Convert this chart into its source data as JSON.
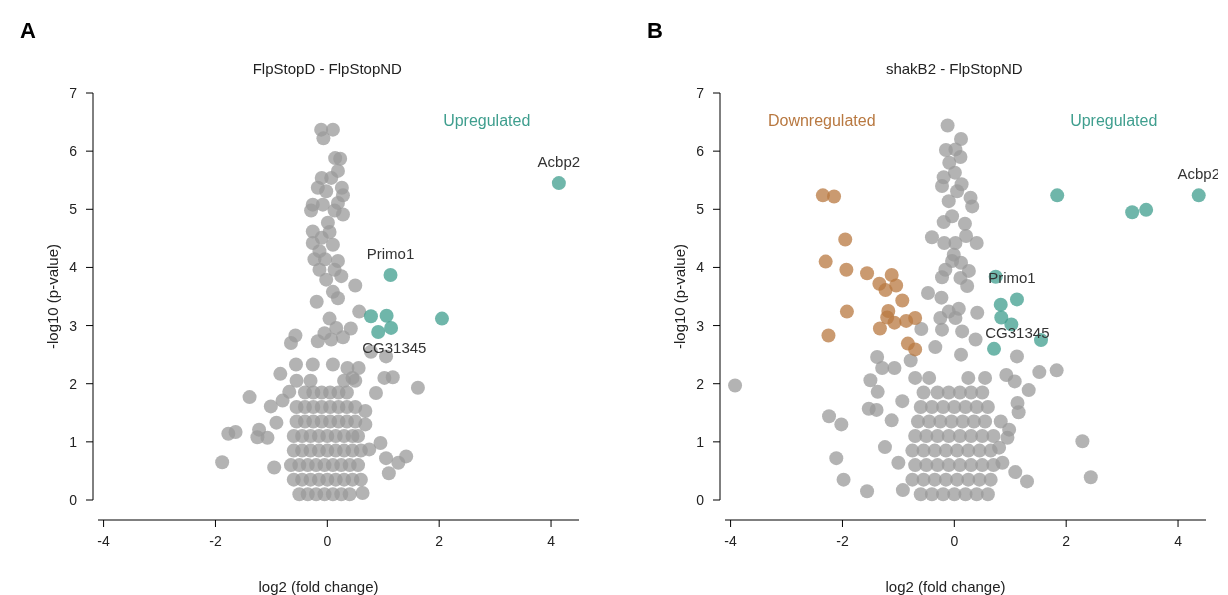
{
  "chart_data": [
    {
      "type": "scatter",
      "title": "FlpStopD - FlpStopND",
      "xlabel": "log2 (fold change)",
      "ylabel": "-log10 (p-value)",
      "xlim": [
        -4.1,
        4.5
      ],
      "ylim": [
        0,
        7
      ],
      "xticks": [
        -4,
        -2,
        0,
        2,
        4
      ],
      "yticks": [
        0,
        1,
        2,
        3,
        4,
        5,
        6,
        7
      ],
      "marker": "circle",
      "annotations": [
        "A",
        {
          "text": "Acbp2",
          "x": 4.14,
          "y": 5.45
        },
        {
          "text": "Primo1",
          "x": 1.13,
          "y": 3.87
        },
        {
          "text": "CG31345",
          "x": 0.91,
          "y": 2.89
        }
      ],
      "series": [
        {
          "color": "#999999",
          "x": [
            -0.11,
            0.1,
            -0.07,
            0.14,
            0.23,
            0.19,
            -0.1,
            0.07,
            -0.17,
            0.26,
            -0.02,
            0.28,
            -0.26,
            -0.08,
            0.19,
            -0.29,
            0.13,
            0.28,
            0.01,
            -0.26,
            0.04,
            -0.1,
            -0.26,
            0.1,
            -0.14,
            -0.23,
            -0.04,
            0.19,
            -0.14,
            0.13,
            0.25,
            -0.02,
            0.5,
            0.1,
            0.19,
            -0.19,
            0.57,
            0.04,
            0.42,
            -0.05,
            0.16,
            -0.57,
            -0.65,
            -0.17,
            0.07,
            0.28,
            0.78,
            1.05,
            -0.84,
            -0.56,
            -0.26,
            0.1,
            0.36,
            0.56,
            1.02,
            1.17,
            1.62,
            0.87,
            0.45,
            -1.39,
            -1.01,
            -0.8,
            -0.68,
            -0.91,
            0.68,
            0.68,
            -1.77,
            -1.64,
            -1.25,
            -1.07,
            -1.22,
            -1.88,
            -0.95,
            0.95,
            1.05,
            1.41,
            1.27,
            1.1,
            0.75,
            0.63,
            -0.5,
            -0.35,
            -0.2,
            -0.05,
            0.1,
            0.25,
            0.4,
            -0.6,
            -0.45,
            -0.3,
            -0.15,
            0,
            0.15,
            0.3,
            0.45,
            0.6,
            -0.65,
            -0.5,
            -0.35,
            -0.2,
            -0.05,
            0.1,
            0.25,
            0.4,
            0.55,
            -0.6,
            -0.45,
            -0.3,
            -0.15,
            0,
            0.15,
            0.3,
            0.45,
            0.6,
            -0.6,
            -0.45,
            -0.3,
            -0.15,
            0,
            0.15,
            0.3,
            0.45,
            0.55,
            -0.55,
            -0.4,
            -0.25,
            -0.1,
            0.05,
            0.2,
            0.35,
            0.5,
            -0.55,
            -0.4,
            -0.25,
            -0.1,
            0.05,
            0.2,
            0.35,
            0.5,
            -0.4,
            -0.25,
            -0.1,
            0.05,
            0.2,
            0.35,
            -0.55,
            -0.3,
            0.3,
            0.5
          ],
          "values": [
            6.37,
            6.37,
            6.22,
            5.88,
            5.87,
            5.66,
            5.54,
            5.54,
            5.37,
            5.37,
            5.31,
            5.24,
            5.08,
            5.08,
            5.11,
            4.98,
            4.98,
            4.91,
            4.77,
            4.62,
            4.61,
            4.51,
            4.42,
            4.39,
            4.28,
            4.14,
            4.14,
            4.11,
            3.96,
            3.96,
            3.85,
            3.79,
            3.69,
            3.58,
            3.47,
            3.41,
            3.24,
            3.12,
            2.95,
            2.87,
            2.96,
            2.83,
            2.7,
            2.73,
            2.76,
            2.8,
            2.55,
            2.47,
            2.17,
            2.33,
            2.33,
            2.33,
            2.27,
            2.27,
            2.1,
            2.11,
            1.93,
            1.84,
            2.1,
            1.77,
            1.61,
            1.71,
            1.86,
            1.33,
            1.53,
            1.3,
            1.14,
            1.17,
            1.08,
            1.07,
            1.21,
            0.65,
            0.56,
            0.98,
            0.72,
            0.75,
            0.64,
            0.46,
            0.87,
            0.12,
            0.1,
            0.1,
            0.1,
            0.1,
            0.1,
            0.1,
            0.1,
            0.35,
            0.35,
            0.35,
            0.35,
            0.35,
            0.35,
            0.35,
            0.35,
            0.35,
            0.6,
            0.6,
            0.6,
            0.6,
            0.6,
            0.6,
            0.6,
            0.6,
            0.6,
            0.85,
            0.85,
            0.85,
            0.85,
            0.85,
            0.85,
            0.85,
            0.85,
            0.85,
            1.1,
            1.1,
            1.1,
            1.1,
            1.1,
            1.1,
            1.1,
            1.1,
            1.1,
            1.35,
            1.35,
            1.35,
            1.35,
            1.35,
            1.35,
            1.35,
            1.35,
            1.6,
            1.6,
            1.6,
            1.6,
            1.6,
            1.6,
            1.6,
            1.6,
            1.85,
            1.85,
            1.85,
            1.85,
            1.85,
            1.85,
            2.05,
            2.05,
            2.05,
            2.05
          ]
        },
        {
          "name": "Upregulated",
          "color": "#3f9e8e",
          "x": [
            4.14,
            1.13,
            0.78,
            1.06,
            2.05,
            0.91,
            1.14
          ],
          "values": [
            5.45,
            3.87,
            3.16,
            3.17,
            3.12,
            2.89,
            2.96
          ]
        }
      ]
    },
    {
      "type": "scatter",
      "title": "shakB2 - FlpStopND",
      "xlabel": "log2 (fold change)",
      "ylabel": "-log10 (p-value)",
      "xlim": [
        -4.1,
        4.5
      ],
      "ylim": [
        0,
        7
      ],
      "xticks": [
        -4,
        -2,
        0,
        2,
        4
      ],
      "yticks": [
        0,
        1,
        2,
        3,
        4,
        5,
        6,
        7
      ],
      "marker": "circle",
      "annotations": [
        "B",
        {
          "text": "Acbp2",
          "x": 4.37,
          "y": 5.24
        },
        {
          "text": "Primo1",
          "x": 1.03,
          "y": 3.45
        },
        {
          "text": "CG31345",
          "x": 0.84,
          "y": 3.14
        }
      ],
      "series": [
        {
          "color": "#999999",
          "x": [
            -0.12,
            0.12,
            -0.15,
            0.02,
            0.11,
            -0.09,
            0.01,
            -0.19,
            -0.22,
            0.13,
            0.05,
            0.29,
            -0.1,
            0.32,
            -0.04,
            -0.19,
            0.19,
            -0.4,
            -0.18,
            0.02,
            0.4,
            0.21,
            -0.01,
            -0.04,
            0.12,
            -0.16,
            0.26,
            -0.22,
            0.11,
            0.23,
            -0.47,
            -0.23,
            0.08,
            -0.1,
            0.41,
            -0.25,
            0.02,
            -0.59,
            -0.22,
            0.14,
            -0.34,
            0.12,
            1.12,
            0.38,
            -1.38,
            -1.29,
            -1.07,
            -0.78,
            0.93,
            1.52,
            1.83,
            -1.5,
            -3.92,
            1.08,
            1.33,
            -1.37,
            -1.53,
            -1.39,
            -0.93,
            1.13,
            1.15,
            -2.24,
            -2.02,
            -1.12,
            0.83,
            0.98,
            2.29,
            -1.24,
            -2.11,
            -1.0,
            -1.98,
            -1.56,
            -0.92,
            2.44,
            1.3,
            1.09,
            0.86,
            0.95,
            0.8,
            -0.6,
            -0.4,
            -0.2,
            0,
            0.2,
            0.4,
            0.6,
            -0.75,
            -0.55,
            -0.35,
            -0.15,
            0.05,
            0.25,
            0.45,
            0.65,
            -0.7,
            -0.5,
            -0.3,
            -0.1,
            0.1,
            0.3,
            0.5,
            0.7,
            -0.75,
            -0.55,
            -0.35,
            -0.15,
            0.05,
            0.25,
            0.45,
            0.65,
            -0.7,
            -0.5,
            -0.3,
            -0.1,
            0.1,
            0.3,
            0.5,
            0.7,
            -0.65,
            -0.45,
            -0.25,
            -0.05,
            0.15,
            0.35,
            0.55,
            -0.6,
            -0.4,
            -0.2,
            0,
            0.2,
            0.4,
            0.6,
            -0.55,
            -0.3,
            -0.1,
            0.1,
            0.3,
            0.5,
            -0.7,
            -0.45,
            0.25,
            0.55
          ],
          "values": [
            6.44,
            6.21,
            6.02,
            6.03,
            5.9,
            5.8,
            5.63,
            5.55,
            5.4,
            5.43,
            5.31,
            5.2,
            5.14,
            5.05,
            4.88,
            4.78,
            4.75,
            4.52,
            4.42,
            4.42,
            4.42,
            4.54,
            4.22,
            4.11,
            4.08,
            3.96,
            3.94,
            3.83,
            3.82,
            3.68,
            3.56,
            3.48,
            3.29,
            3.24,
            3.22,
            3.13,
            3.13,
            2.94,
            2.93,
            2.9,
            2.63,
            2.5,
            2.47,
            2.76,
            2.46,
            2.27,
            2.27,
            2.4,
            2.15,
            2.2,
            2.23,
            2.06,
            1.97,
            2.04,
            1.89,
            1.86,
            1.57,
            1.55,
            1.7,
            1.67,
            1.51,
            1.44,
            1.3,
            1.37,
            1.35,
            1.21,
            1.01,
            0.91,
            0.72,
            0.64,
            0.35,
            0.15,
            0.17,
            0.39,
            0.32,
            0.48,
            0.64,
            1.07,
            0.9,
            0.1,
            0.1,
            0.1,
            0.1,
            0.1,
            0.1,
            0.1,
            0.35,
            0.35,
            0.35,
            0.35,
            0.35,
            0.35,
            0.35,
            0.35,
            0.6,
            0.6,
            0.6,
            0.6,
            0.6,
            0.6,
            0.6,
            0.6,
            0.85,
            0.85,
            0.85,
            0.85,
            0.85,
            0.85,
            0.85,
            0.85,
            1.1,
            1.1,
            1.1,
            1.1,
            1.1,
            1.1,
            1.1,
            1.1,
            1.35,
            1.35,
            1.35,
            1.35,
            1.35,
            1.35,
            1.35,
            1.6,
            1.6,
            1.6,
            1.6,
            1.6,
            1.6,
            1.6,
            1.85,
            1.85,
            1.85,
            1.85,
            1.85,
            1.85,
            2.1,
            2.1,
            2.1,
            2.1
          ]
        },
        {
          "name": "Downregulated",
          "color": "#b87840",
          "x": [
            -2.35,
            -2.15,
            -1.95,
            -2.3,
            -1.93,
            -1.56,
            -1.12,
            -1.34,
            -1.04,
            -1.23,
            -0.93,
            -1.92,
            -1.18,
            -1.2,
            -1.07,
            -0.86,
            -0.7,
            -1.33,
            -2.25,
            -0.83,
            -0.7
          ],
          "values": [
            5.24,
            5.22,
            4.48,
            4.1,
            3.96,
            3.9,
            3.87,
            3.72,
            3.69,
            3.61,
            3.43,
            3.24,
            3.25,
            3.14,
            3.05,
            3.08,
            3.13,
            2.95,
            2.83,
            2.69,
            2.59
          ]
        },
        {
          "name": "Upregulated",
          "color": "#3f9e8e",
          "x": [
            4.37,
            1.84,
            3.18,
            3.43,
            0.74,
            0.83,
            1.12,
            0.84,
            1.02,
            1.55,
            0.71
          ],
          "values": [
            5.24,
            5.24,
            4.95,
            4.99,
            3.84,
            3.36,
            3.45,
            3.14,
            3.02,
            2.75,
            2.6
          ]
        }
      ]
    }
  ]
}
